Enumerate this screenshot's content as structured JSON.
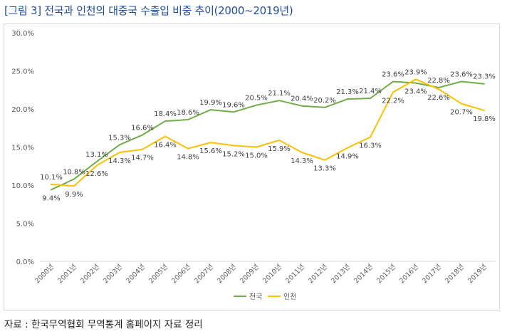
{
  "page": {
    "title": "[그림 3] 전국과 인천의 대중국 수출입 비중 추이(2000~2019년)",
    "source": "자료 : 한국무역협회 무역통계 홈페이지 자료 정리"
  },
  "colors": {
    "title": "#1f4e9c",
    "national": "#70ad47",
    "incheon": "#ffc000",
    "axis_text": "#595959",
    "grid": "#d9d9d9"
  },
  "chart_data": {
    "type": "line",
    "title": "",
    "xlabel": "",
    "ylabel": "",
    "ylim": [
      0,
      30
    ],
    "yticks": [
      0,
      5,
      10,
      15,
      20,
      25,
      30
    ],
    "ytick_labels": [
      "0.0%",
      "5.0%",
      "10.0%",
      "15.0%",
      "20.0%",
      "25.0%",
      "30.0%"
    ],
    "grid": false,
    "legend_position": "bottom",
    "categories": [
      "2000년",
      "2001년",
      "2002년",
      "2003년",
      "2004년",
      "2005년",
      "2006년",
      "2007년",
      "2008년",
      "2009년",
      "2010년",
      "2011년",
      "2012년",
      "2013년",
      "2014년",
      "2015년",
      "2016년",
      "2017년",
      "2018년",
      "2019년"
    ],
    "series": [
      {
        "name": "전국",
        "color": "#70ad47",
        "values": [
          9.4,
          10.8,
          13.1,
          15.3,
          16.6,
          18.4,
          18.6,
          19.9,
          19.6,
          20.5,
          21.1,
          20.4,
          20.2,
          21.3,
          21.4,
          23.6,
          23.4,
          22.8,
          23.6,
          23.3
        ],
        "labels": [
          "9.4%",
          "10.8%",
          "13.1%",
          "15.3%",
          "16.6%",
          "18.4%",
          "18.6%",
          "19.9%",
          "19.6%",
          "20.5%",
          "21.1%",
          "20.4%",
          "20.2%",
          "21.3%",
          "21.4%",
          "23.6%",
          "23.4%",
          "22.8%",
          "23.6%",
          "23.3%"
        ]
      },
      {
        "name": "인천",
        "color": "#ffc000",
        "values": [
          10.1,
          9.9,
          12.6,
          14.3,
          14.7,
          16.4,
          14.8,
          15.6,
          15.2,
          15.0,
          15.9,
          14.3,
          13.3,
          14.9,
          16.3,
          22.2,
          23.9,
          22.6,
          20.7,
          19.8
        ],
        "labels": [
          "10.1%",
          "9.9%",
          "12.6%",
          "14.3%",
          "14.7%",
          "16.4%",
          "14.8%",
          "15.6%",
          "15.2%",
          "15.0%",
          "15.9%",
          "14.3%",
          "13.3%",
          "14.9%",
          "16.3%",
          "22.2%",
          "23.9%",
          "22.6%",
          "20.7%",
          "19.8%"
        ]
      }
    ]
  }
}
